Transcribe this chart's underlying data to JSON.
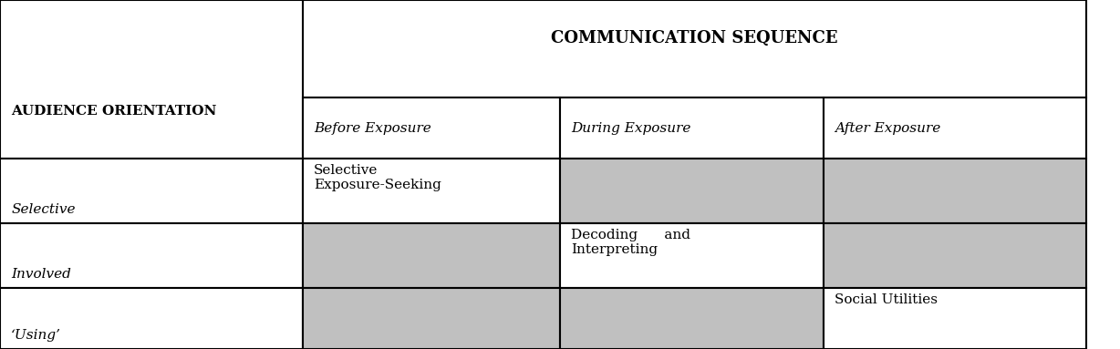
{
  "title": "COMMUNICATION SEQUENCE",
  "col_header_label": "AUDIENCE ORIENTATION",
  "col_headers": [
    "Before Exposure",
    "During Exposure",
    "After Exposure"
  ],
  "row_labels": [
    "Selective",
    "Involved",
    "‘Using’"
  ],
  "cell_texts": [
    [
      "Selective\nExposure-Seeking",
      "",
      ""
    ],
    [
      "",
      "Decoding      and\nInterpreting",
      ""
    ],
    [
      "",
      "",
      "Social Utilities"
    ]
  ],
  "shaded_cells": [
    [
      false,
      true,
      true
    ],
    [
      true,
      false,
      true
    ],
    [
      true,
      true,
      false
    ]
  ],
  "shade_color": "#c0c0c0",
  "bg_color": "#ffffff",
  "line_color": "#000000",
  "title_fontsize": 13,
  "header_fontsize": 11,
  "cell_fontsize": 11,
  "row_label_fontsize": 11
}
